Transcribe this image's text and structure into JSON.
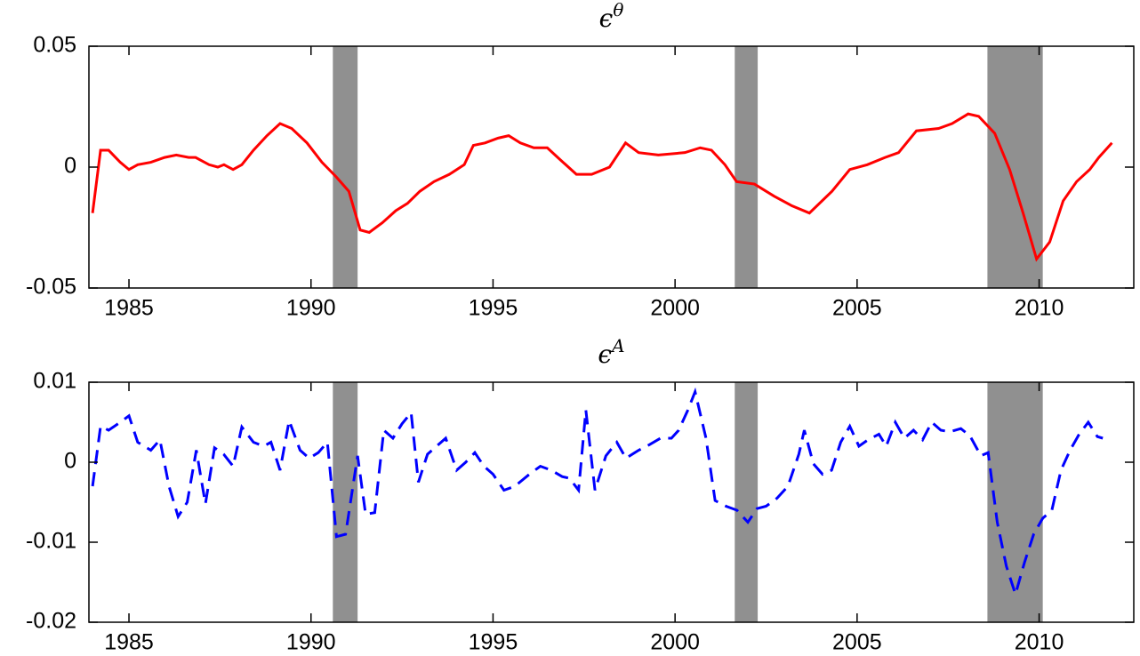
{
  "chart_data": [
    {
      "type": "line",
      "title": {
        "symbol": "ϵ",
        "superscript": "θ"
      },
      "x": [
        1984.0,
        1984.22,
        1984.44,
        1984.76,
        1985.0,
        1985.24,
        1985.6,
        1985.98,
        1986.3,
        1986.64,
        1986.83,
        1987.2,
        1987.44,
        1987.61,
        1987.86,
        1988.1,
        1988.42,
        1988.79,
        1989.15,
        1989.47,
        1989.89,
        1990.3,
        1990.69,
        1991.04,
        1991.35,
        1991.6,
        1991.96,
        1992.33,
        1992.65,
        1992.99,
        1993.38,
        1993.8,
        1994.21,
        1994.46,
        1994.78,
        1995.14,
        1995.43,
        1995.75,
        1996.12,
        1996.49,
        1996.85,
        1997.29,
        1997.71,
        1998.2,
        1998.64,
        1999.0,
        1999.54,
        2000.27,
        2000.69,
        2001.0,
        2001.37,
        2001.69,
        2002.18,
        2002.72,
        2003.21,
        2003.69,
        2004.31,
        2004.8,
        2005.28,
        2005.77,
        2006.14,
        2006.63,
        2007.24,
        2007.61,
        2008.05,
        2008.34,
        2008.78,
        2009.19,
        2009.56,
        2009.93,
        2010.29,
        2010.66,
        2011.03,
        2011.39,
        2011.64,
        2012.0
      ],
      "series": [
        {
          "color": "#ff0000",
          "line_style": "solid",
          "values": [
            -0.019,
            0.007,
            0.007,
            0.002,
            -0.001,
            0.001,
            0.002,
            0.004,
            0.005,
            0.004,
            0.004,
            0.001,
            0.0,
            0.001,
            -0.001,
            0.001,
            0.007,
            0.013,
            0.018,
            0.016,
            0.01,
            0.002,
            -0.004,
            -0.01,
            -0.026,
            -0.027,
            -0.023,
            -0.018,
            -0.015,
            -0.01,
            -0.006,
            -0.003,
            0.001,
            0.009,
            0.01,
            0.012,
            0.013,
            0.01,
            0.008,
            0.008,
            0.003,
            -0.003,
            -0.003,
            0.0,
            0.01,
            0.006,
            0.005,
            0.006,
            0.008,
            0.007,
            0.001,
            -0.006,
            -0.007,
            -0.012,
            -0.016,
            -0.019,
            -0.01,
            -0.001,
            0.001,
            0.004,
            0.006,
            0.015,
            0.016,
            0.018,
            0.022,
            0.021,
            0.014,
            -0.001,
            -0.019,
            -0.038,
            -0.031,
            -0.014,
            -0.006,
            -0.001,
            0.004,
            0.01
          ]
        }
      ],
      "shaded_regions": [
        [
          1990.6,
          1991.28
        ],
        [
          2001.64,
          2002.27
        ],
        [
          2008.58,
          2010.1
        ]
      ],
      "shade_color": "#909090",
      "xlim": [
        1983.9,
        2012.6
      ],
      "xticks": [
        1985,
        1990,
        1995,
        2000,
        2005,
        2010
      ],
      "ylim": [
        -0.05,
        0.05
      ],
      "yticks": [
        -0.05,
        0,
        0.05
      ]
    },
    {
      "type": "line",
      "title": {
        "symbol": "ϵ",
        "superscript": "A"
      },
      "x": [
        1984.0,
        1984.22,
        1984.44,
        1984.76,
        1985.0,
        1985.24,
        1985.6,
        1985.85,
        1986.1,
        1986.35,
        1986.6,
        1986.85,
        1987.1,
        1987.35,
        1987.6,
        1987.86,
        1988.1,
        1988.42,
        1988.7,
        1988.9,
        1989.15,
        1989.4,
        1989.7,
        1989.95,
        1990.2,
        1990.45,
        1990.7,
        1990.95,
        1991.28,
        1991.5,
        1991.75,
        1992.0,
        1992.25,
        1992.5,
        1992.75,
        1992.95,
        1993.2,
        1993.45,
        1993.7,
        1994.0,
        1994.25,
        1994.5,
        1994.75,
        1995.0,
        1995.3,
        1995.6,
        1996.0,
        1996.3,
        1996.6,
        1996.9,
        1997.1,
        1997.35,
        1997.55,
        1997.8,
        1998.1,
        1998.4,
        1998.65,
        1999.0,
        1999.3,
        1999.6,
        1999.9,
        2000.1,
        2000.35,
        2000.55,
        2000.85,
        2001.1,
        2001.4,
        2001.7,
        2002.0,
        2002.25,
        2002.5,
        2002.8,
        2003.1,
        2003.4,
        2003.55,
        2003.8,
        2004.05,
        2004.3,
        2004.55,
        2004.8,
        2005.05,
        2005.3,
        2005.6,
        2005.8,
        2006.05,
        2006.3,
        2006.55,
        2006.8,
        2007.05,
        2007.3,
        2007.55,
        2007.85,
        2008.1,
        2008.4,
        2008.6,
        2008.85,
        2009.1,
        2009.35,
        2009.6,
        2009.85,
        2010.1,
        2010.35,
        2010.6,
        2010.85,
        2011.1,
        2011.35,
        2011.6,
        2011.75
      ],
      "series": [
        {
          "color": "#0000ff",
          "line_style": "dashed",
          "values": [
            -0.003,
            0.0045,
            0.004,
            0.005,
            0.0058,
            0.0025,
            0.0015,
            0.0028,
            -0.003,
            -0.0068,
            -0.005,
            0.0015,
            -0.0052,
            0.0018,
            0.001,
            -0.0005,
            0.0044,
            0.0025,
            0.002,
            0.0025,
            -0.001,
            0.0052,
            0.0015,
            0.0005,
            0.0012,
            0.0025,
            -0.0093,
            -0.009,
            0.0008,
            -0.0065,
            -0.0063,
            0.004,
            0.003,
            0.0048,
            0.0062,
            -0.0025,
            0.001,
            0.002,
            0.003,
            -0.001,
            0.0,
            0.0012,
            -0.0005,
            -0.0015,
            -0.0035,
            -0.003,
            -0.0015,
            -0.0005,
            -0.001,
            -0.0018,
            -0.002,
            -0.0035,
            0.0065,
            -0.0035,
            0.0008,
            0.0025,
            0.0005,
            0.0015,
            0.0022,
            0.003,
            0.003,
            0.004,
            0.0065,
            0.0088,
            0.003,
            -0.0048,
            -0.0055,
            -0.006,
            -0.0075,
            -0.0058,
            -0.0055,
            -0.0045,
            -0.003,
            0.001,
            0.004,
            -0.0002,
            -0.0015,
            -0.001,
            0.0025,
            0.0045,
            0.002,
            0.0028,
            0.0035,
            0.002,
            0.005,
            0.003,
            0.004,
            0.0028,
            0.005,
            0.004,
            0.0038,
            0.0042,
            0.0033,
            0.0008,
            0.0012,
            -0.0075,
            -0.013,
            -0.0165,
            -0.0125,
            -0.009,
            -0.007,
            -0.006,
            -0.001,
            0.0015,
            0.0035,
            0.005,
            0.0032,
            0.003
          ]
        }
      ],
      "shaded_regions": [
        [
          1990.6,
          1991.28
        ],
        [
          2001.64,
          2002.27
        ],
        [
          2008.58,
          2010.1
        ]
      ],
      "shade_color": "#909090",
      "xlim": [
        1983.9,
        2012.6
      ],
      "xticks": [
        1985,
        1990,
        1995,
        2000,
        2005,
        2010
      ],
      "ylim": [
        -0.02,
        0.01
      ],
      "yticks": [
        -0.02,
        -0.01,
        0,
        0.01
      ]
    }
  ]
}
